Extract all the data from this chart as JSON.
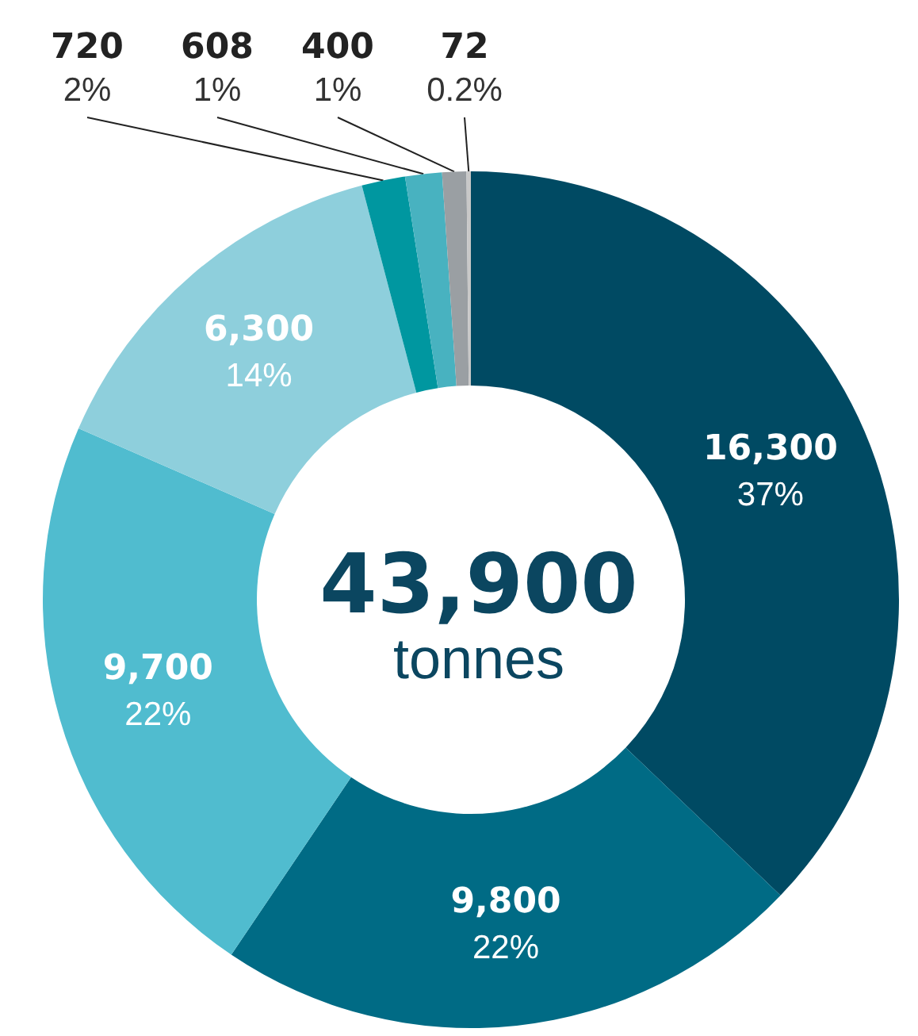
{
  "chart_data": {
    "type": "donut",
    "categories": [
      null,
      null,
      null,
      null,
      null,
      null,
      null,
      null
    ],
    "values": [
      16300,
      9800,
      9700,
      6300,
      720,
      608,
      400,
      72
    ],
    "colors": [
      "#004a63",
      "#006b85",
      "#50bccf",
      "#8ecfdc",
      "#0097a0",
      "#48b2c0",
      "#9a9fa3",
      "#c8c8c8"
    ],
    "value_labels": [
      "16,300\n37%",
      "9,800\n22%",
      "9,700\n22%",
      "6,300\n14%",
      "720\n2%",
      "608\n1%",
      "400\n1%",
      "72\n0.2%"
    ],
    "annotations": [
      "43,900",
      "tonnes"
    ]
  }
}
